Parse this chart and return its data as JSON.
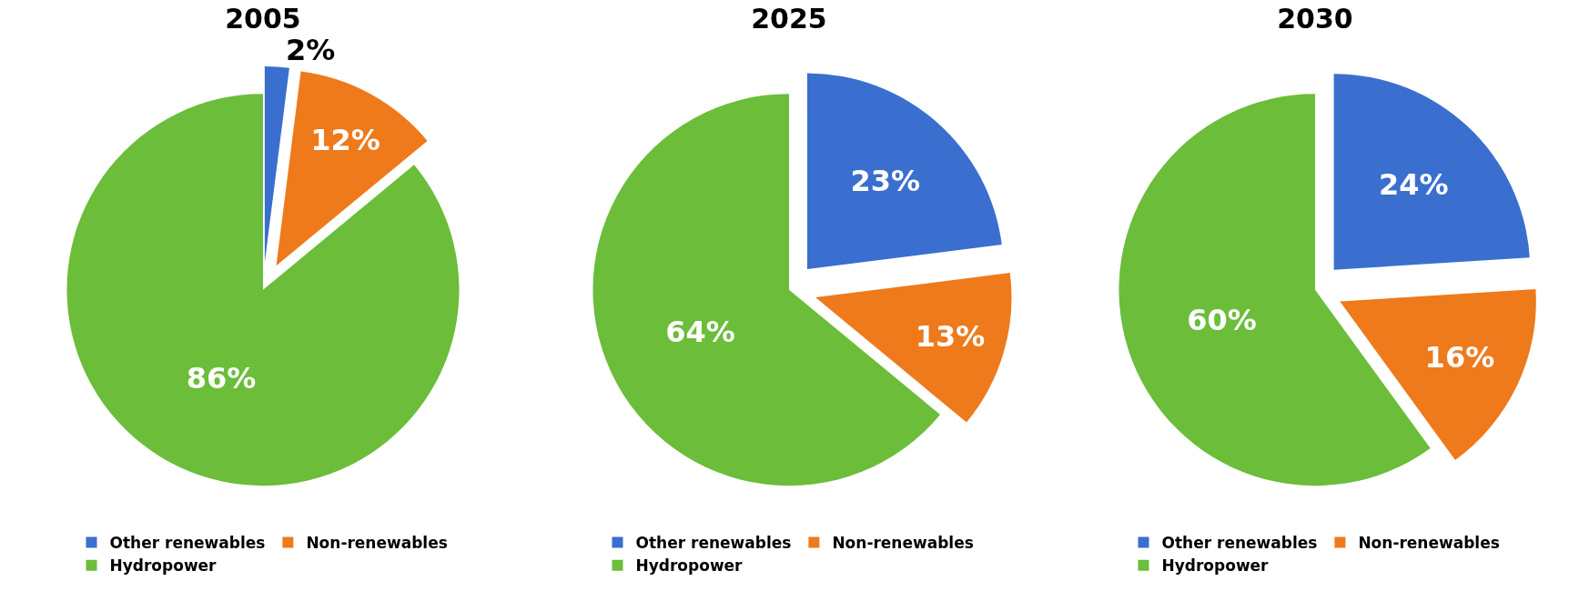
{
  "chart_data": [
    {
      "type": "pie",
      "title": "2005",
      "categories": [
        "Other renewables",
        "Non-renewables",
        "Hydropower"
      ],
      "values": [
        2,
        12,
        86
      ],
      "value_labels": [
        "2%",
        "12%",
        "86%"
      ],
      "colors": [
        "#3a6fd0",
        "#ee7a1c",
        "#6bbd3a"
      ],
      "legend": "bottom"
    },
    {
      "type": "pie",
      "title": "2025",
      "categories": [
        "Other renewables",
        "Non-renewables",
        "Hydropower"
      ],
      "values": [
        23,
        13,
        64
      ],
      "value_labels": [
        "23%",
        "13%",
        "64%"
      ],
      "colors": [
        "#3a6fd0",
        "#ee7a1c",
        "#6bbd3a"
      ],
      "legend": "bottom"
    },
    {
      "type": "pie",
      "title": "2030",
      "categories": [
        "Other renewables",
        "Non-renewables",
        "Hydropower"
      ],
      "values": [
        24,
        16,
        60
      ],
      "value_labels": [
        "24%",
        "16%",
        "60%"
      ],
      "colors": [
        "#3a6fd0",
        "#ee7a1c",
        "#6bbd3a"
      ],
      "legend": "bottom"
    }
  ]
}
